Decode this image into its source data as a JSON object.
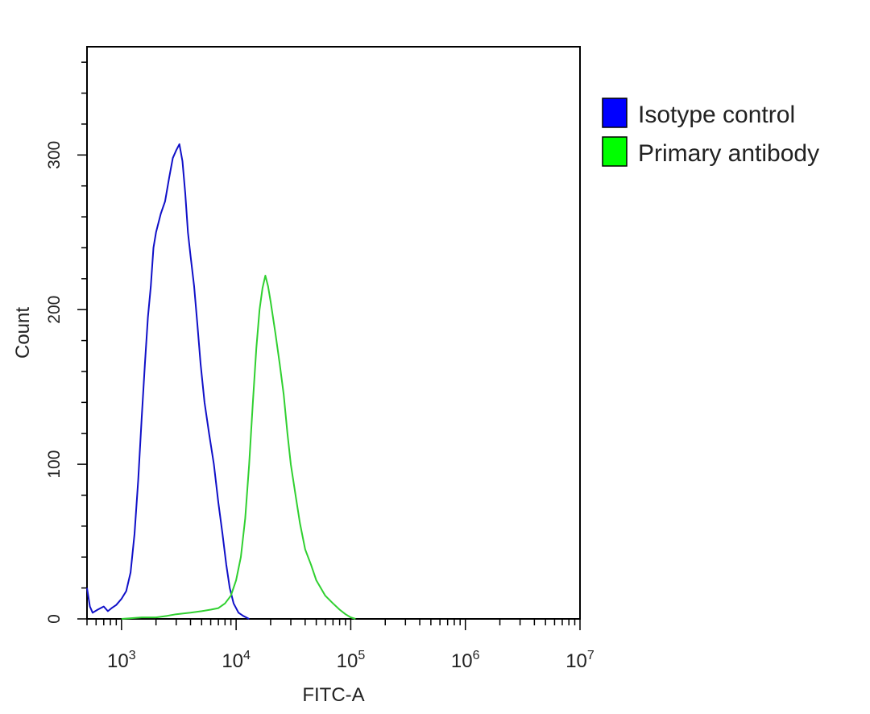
{
  "chart_data": {
    "type": "line",
    "title": "",
    "xlabel": "FITC-A",
    "ylabel": "Count",
    "x_scale": "log",
    "xlim": [
      500,
      10000000
    ],
    "ylim": [
      0,
      370
    ],
    "x_ticks": [
      {
        "value": 1000,
        "base": "10",
        "exp": "3"
      },
      {
        "value": 10000,
        "base": "10",
        "exp": "4"
      },
      {
        "value": 100000,
        "base": "10",
        "exp": "5"
      },
      {
        "value": 1000000,
        "base": "10",
        "exp": "6"
      },
      {
        "value": 10000000,
        "base": "10",
        "exp": "7"
      }
    ],
    "y_ticks": [
      {
        "value": 0,
        "label": "0"
      },
      {
        "value": 100,
        "label": "100"
      },
      {
        "value": 200,
        "label": "200"
      },
      {
        "value": 300,
        "label": "300"
      }
    ],
    "legend_position": "top-right, outside plot",
    "grid": false,
    "series": [
      {
        "name": "Isotype control",
        "color": "#1010c8",
        "swatch": "#0000ff",
        "points": [
          [
            500,
            20
          ],
          [
            530,
            8
          ],
          [
            560,
            4
          ],
          [
            620,
            6
          ],
          [
            700,
            8
          ],
          [
            760,
            5
          ],
          [
            820,
            7
          ],
          [
            900,
            9
          ],
          [
            1000,
            13
          ],
          [
            1100,
            18
          ],
          [
            1200,
            30
          ],
          [
            1300,
            55
          ],
          [
            1400,
            90
          ],
          [
            1500,
            130
          ],
          [
            1600,
            165
          ],
          [
            1700,
            195
          ],
          [
            1800,
            215
          ],
          [
            1900,
            240
          ],
          [
            2000,
            250
          ],
          [
            2200,
            262
          ],
          [
            2400,
            270
          ],
          [
            2600,
            285
          ],
          [
            2800,
            298
          ],
          [
            3000,
            303
          ],
          [
            3200,
            307
          ],
          [
            3400,
            296
          ],
          [
            3600,
            275
          ],
          [
            3800,
            250
          ],
          [
            4000,
            235
          ],
          [
            4300,
            215
          ],
          [
            4600,
            190
          ],
          [
            4900,
            165
          ],
          [
            5300,
            140
          ],
          [
            5800,
            120
          ],
          [
            6400,
            100
          ],
          [
            7000,
            75
          ],
          [
            7600,
            55
          ],
          [
            8200,
            35
          ],
          [
            8800,
            20
          ],
          [
            9500,
            10
          ],
          [
            10500,
            4
          ],
          [
            11500,
            2
          ],
          [
            13000,
            0
          ]
        ]
      },
      {
        "name": "Primary antibody",
        "color": "#30d030",
        "swatch": "#00ff00",
        "points": [
          [
            1000,
            0
          ],
          [
            1500,
            1
          ],
          [
            2000,
            1
          ],
          [
            2500,
            2
          ],
          [
            3000,
            3
          ],
          [
            4000,
            4
          ],
          [
            5000,
            5
          ],
          [
            6000,
            6
          ],
          [
            7000,
            7
          ],
          [
            8000,
            10
          ],
          [
            9000,
            15
          ],
          [
            10000,
            25
          ],
          [
            11000,
            40
          ],
          [
            12000,
            65
          ],
          [
            13000,
            100
          ],
          [
            14000,
            140
          ],
          [
            15000,
            175
          ],
          [
            16000,
            200
          ],
          [
            17000,
            214
          ],
          [
            18000,
            222
          ],
          [
            19000,
            215
          ],
          [
            20000,
            205
          ],
          [
            22000,
            185
          ],
          [
            24000,
            165
          ],
          [
            26000,
            145
          ],
          [
            28000,
            120
          ],
          [
            30000,
            100
          ],
          [
            33000,
            80
          ],
          [
            36000,
            62
          ],
          [
            40000,
            45
          ],
          [
            45000,
            35
          ],
          [
            50000,
            25
          ],
          [
            60000,
            15
          ],
          [
            70000,
            10
          ],
          [
            80000,
            6
          ],
          [
            90000,
            3
          ],
          [
            100000,
            1
          ],
          [
            110000,
            0
          ]
        ]
      }
    ]
  }
}
